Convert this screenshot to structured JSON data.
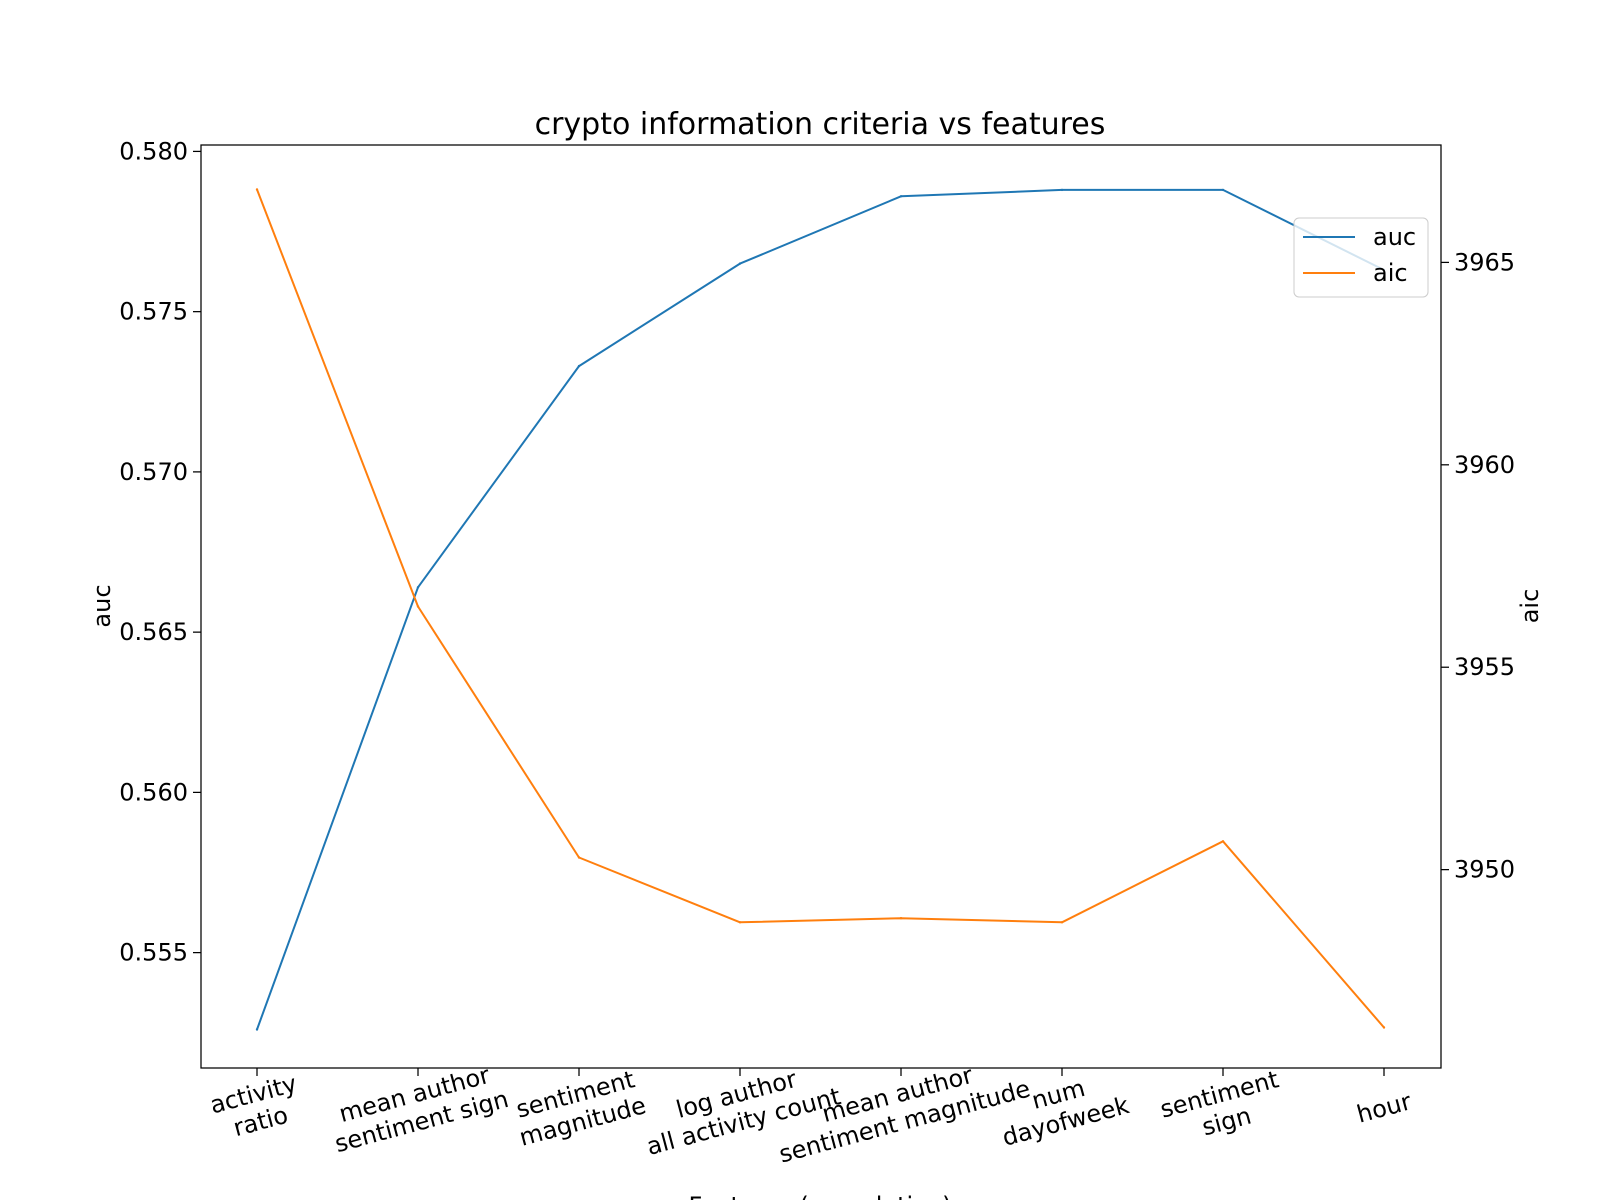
{
  "chart_data": {
    "type": "line",
    "title": "crypto information criteria vs features",
    "xlabel": "Features (cumulative)",
    "ylabel_left": "auc",
    "ylabel_right": "aic",
    "categories": [
      [
        "activity",
        "ratio"
      ],
      [
        "mean author",
        "sentiment sign"
      ],
      [
        "sentiment",
        "magnitude"
      ],
      [
        "log author",
        "all activity count"
      ],
      [
        "mean author",
        "sentiment magnitude"
      ],
      [
        "num",
        "dayofweek"
      ],
      [
        "sentiment",
        "sign"
      ],
      [
        "hour"
      ]
    ],
    "series": [
      {
        "name": "auc",
        "axis": "left",
        "color": "#1f77b4",
        "values": [
          0.5526,
          0.5664,
          0.5733,
          0.5765,
          0.5786,
          0.5788,
          0.5788,
          0.5763
        ]
      },
      {
        "name": "aic",
        "axis": "right",
        "color": "#ff7f0e",
        "values": [
          3966.8,
          3956.5,
          3950.3,
          3948.7,
          3948.8,
          3948.7,
          3950.7,
          3946.1
        ]
      }
    ],
    "y_left": {
      "range": [
        0.5514,
        0.5802
      ],
      "ticks": [
        0.555,
        0.56,
        0.565,
        0.57,
        0.575,
        0.58
      ],
      "tick_labels": [
        "0.555",
        "0.560",
        "0.565",
        "0.570",
        "0.575",
        "0.580"
      ]
    },
    "y_right": {
      "range": [
        3945.1,
        3967.9
      ],
      "ticks": [
        3950,
        3955,
        3960,
        3965
      ],
      "tick_labels": [
        "3950",
        "3955",
        "3960",
        "3965"
      ]
    },
    "x_tick_rotation_deg": -15,
    "grid": false,
    "legend": {
      "position": "upper-right",
      "entries": [
        "auc",
        "aic"
      ]
    }
  }
}
